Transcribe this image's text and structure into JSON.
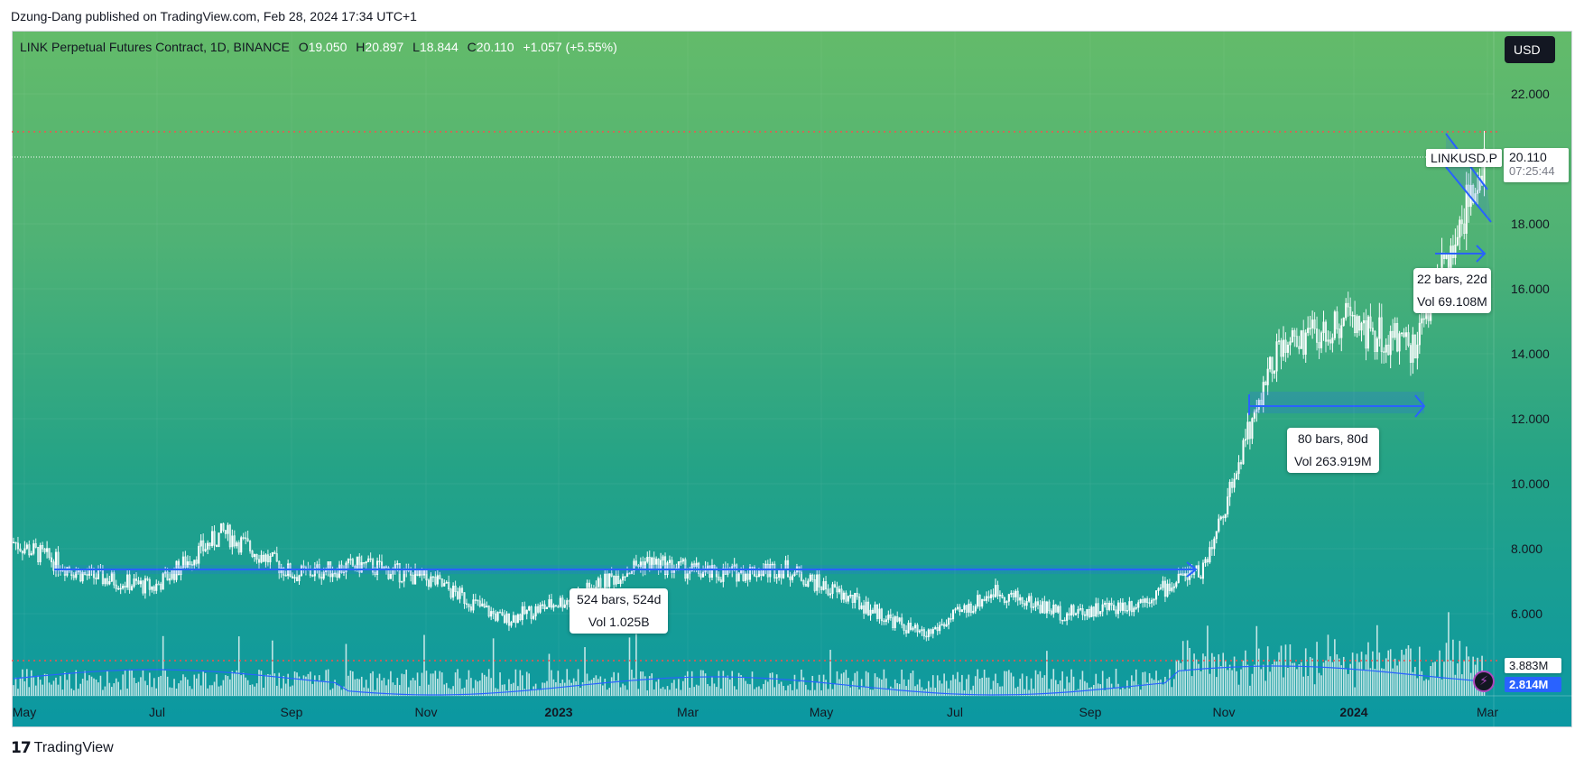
{
  "header": {
    "published_text": "Dzung-Dang published on TradingView.com, Feb 28, 2024 17:34 UTC+1"
  },
  "legend": {
    "title": "LINK Perpetual Futures Contract, 1D, BINANCE",
    "o_label": "O",
    "o_value": "19.050",
    "h_label": "H",
    "h_value": "20.897",
    "l_label": "L",
    "l_value": "18.844",
    "c_label": "C",
    "c_value": "20.110",
    "change": "+1.057 (+5.55%)"
  },
  "currency_button": "USD",
  "price_scale": {
    "ticks": [
      "22.000",
      "18.000",
      "16.000",
      "14.000",
      "12.000",
      "10.000",
      "8.000",
      "6.000"
    ]
  },
  "last_price": {
    "symbol": "LINKUSD.P",
    "value": "20.110",
    "countdown": "07:25:44"
  },
  "volume_labels": {
    "vol": "3.883M",
    "vol_ma": "2.814M"
  },
  "time_axis": {
    "labels": [
      "May",
      "Jul",
      "Sep",
      "Nov",
      "2023",
      "Mar",
      "May",
      "Jul",
      "Sep",
      "Nov",
      "2024",
      "Mar"
    ]
  },
  "measurements": [
    {
      "bars": "524 bars, 524d",
      "vol": "Vol 1.025B"
    },
    {
      "bars": "80 bars, 80d",
      "vol": "Vol 263.919M"
    },
    {
      "bars": "22 bars, 22d",
      "vol": "Vol 69.108M"
    }
  ],
  "footer": {
    "brand": "TradingView"
  },
  "chart_data": {
    "type": "line",
    "title": "LINK Perpetual Futures Contract, 1D, BINANCE",
    "x_start": "2022-05",
    "x_end": "2024-02",
    "ylim": [
      4.7,
      23.5
    ],
    "series": [
      {
        "name": "",
        "x": [
          "2022-05",
          "2022-06",
          "2022-07",
          "2022-08",
          "2022-09",
          "2022-10",
          "2022-11",
          "2022-12",
          "2023-01",
          "2023-02",
          "2023-03",
          "2023-04",
          "2023-05",
          "2023-06",
          "2023-07",
          "2023-08",
          "2023-09",
          "2023-10",
          "2023-11",
          "2023-12",
          "2024-01",
          "2024-02"
        ],
        "values": [
          8.2,
          7.2,
          6.8,
          8.5,
          7.2,
          7.5,
          7.0,
          5.8,
          6.5,
          7.6,
          7.2,
          7.4,
          6.4,
          5.3,
          6.7,
          6.0,
          6.3,
          7.4,
          14.0,
          15.0,
          14.2,
          20.1
        ]
      }
    ],
    "horizontal_levels": [
      20.897,
      20.11,
      7.5
    ],
    "colors": {
      "up": "#ffffff",
      "drawing": "#2962ff",
      "level": "#ef5350",
      "ma": "#2962ff"
    }
  }
}
